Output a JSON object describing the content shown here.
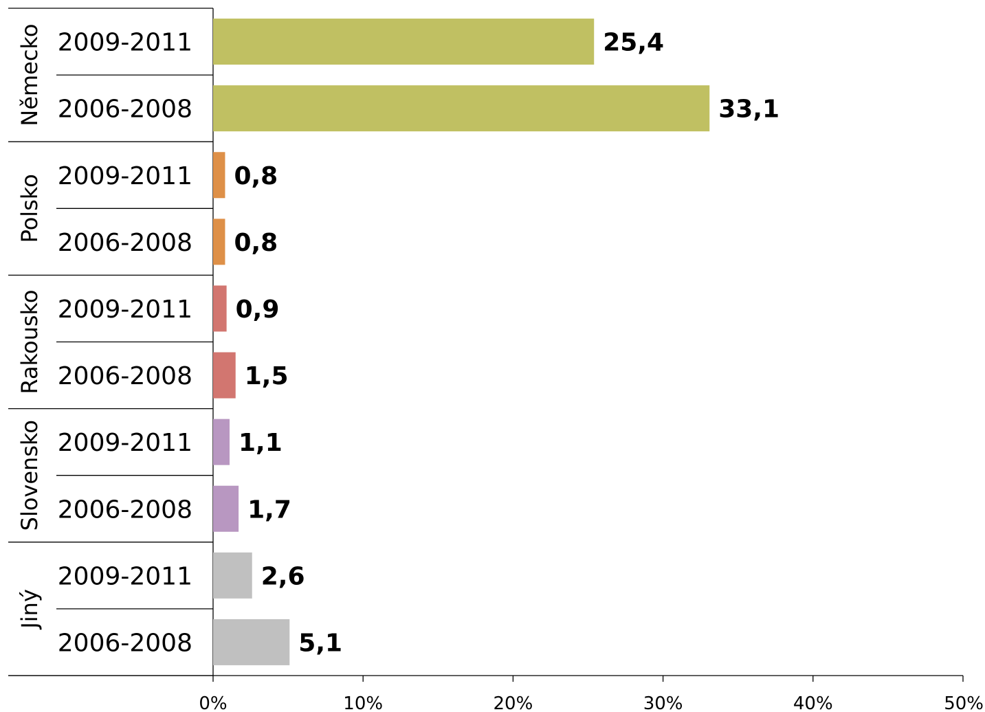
{
  "chart_data": {
    "type": "bar",
    "orientation": "horizontal",
    "title": "",
    "xlabel": "",
    "ylabel": "",
    "xlim": [
      0,
      50
    ],
    "x_ticks": [
      "0%",
      "10%",
      "20%",
      "30%",
      "40%",
      "50%"
    ],
    "grid": false,
    "legend": "none",
    "groups": [
      {
        "name": "Německo",
        "color": "#c0c062",
        "bars": [
          {
            "category": "2009-2011",
            "value": 25.4,
            "label": "25,4"
          },
          {
            "category": "2006-2008",
            "value": 33.1,
            "label": "33,1"
          }
        ]
      },
      {
        "name": "Polsko",
        "color": "#de9048",
        "bars": [
          {
            "category": "2009-2011",
            "value": 0.8,
            "label": "0,8"
          },
          {
            "category": "2006-2008",
            "value": 0.8,
            "label": "0,8"
          }
        ]
      },
      {
        "name": "Rakousko",
        "color": "#d27670",
        "bars": [
          {
            "category": "2009-2011",
            "value": 0.9,
            "label": "0,9"
          },
          {
            "category": "2006-2008",
            "value": 1.5,
            "label": "1,5"
          }
        ]
      },
      {
        "name": "Slovensko",
        "color": "#b897c1",
        "bars": [
          {
            "category": "2009-2011",
            "value": 1.1,
            "label": "1,1"
          },
          {
            "category": "2006-2008",
            "value": 1.7,
            "label": "1,7"
          }
        ]
      },
      {
        "name": "Jiný",
        "color": "#c0c0c0",
        "bars": [
          {
            "category": "2009-2011",
            "value": 2.6,
            "label": "2,6"
          },
          {
            "category": "2006-2008",
            "value": 5.1,
            "label": "5,1"
          }
        ]
      }
    ]
  }
}
